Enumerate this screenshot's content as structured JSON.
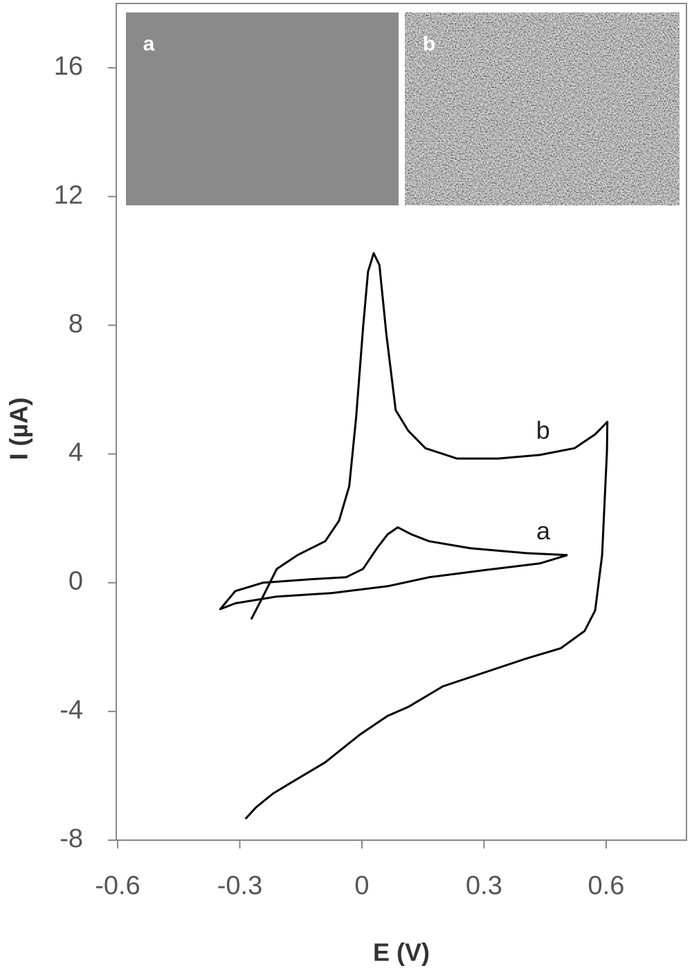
{
  "chart_data": {
    "type": "line",
    "xlabel": "E (V)",
    "ylabel": "I (µA)",
    "xlim": [
      -0.6,
      0.8
    ],
    "xticks": [
      -0.6,
      -0.3,
      0,
      0.3,
      0.6
    ],
    "ylim": [
      -8,
      18
    ],
    "yticks": [
      -8,
      -4,
      0,
      4,
      8,
      12,
      16
    ],
    "insets": [
      {
        "label": "a"
      },
      {
        "label": "b"
      }
    ],
    "series": [
      {
        "name": "a",
        "color": "#000000",
        "x": [
          0.505,
          0.403,
          0.267,
          0.165,
          0.122,
          0.088,
          0.063,
          0.037,
          0.003,
          -0.039,
          -0.124,
          -0.243,
          -0.311,
          -0.348,
          -0.311,
          -0.209,
          -0.073,
          0.063,
          0.165,
          0.301,
          0.437,
          0.505
        ],
        "values": [
          0.86,
          0.92,
          1.07,
          1.29,
          1.5,
          1.72,
          1.5,
          1.07,
          0.43,
          0.17,
          0.11,
          0,
          -0.26,
          -0.82,
          -0.64,
          -0.43,
          -0.32,
          -0.11,
          0.17,
          0.39,
          0.6,
          0.86
        ]
      },
      {
        "name": "b",
        "color": "#000000",
        "x": [
          -0.272,
          -0.243,
          -0.209,
          -0.158,
          -0.09,
          -0.056,
          -0.031,
          -0.014,
          0.003,
          0.015,
          0.029,
          0.043,
          0.06,
          0.083,
          0.114,
          0.156,
          0.233,
          0.335,
          0.437,
          0.522,
          0.573,
          0.603,
          0.602,
          0.59,
          0.573,
          0.547,
          0.488,
          0.403,
          0.301,
          0.199,
          0.114,
          0.063,
          -0.005,
          -0.09,
          -0.175,
          -0.218,
          -0.26,
          -0.286
        ],
        "values": [
          -1.14,
          -0.43,
          0.43,
          0.86,
          1.29,
          1.93,
          3.0,
          5.15,
          7.94,
          9.66,
          10.24,
          9.87,
          7.73,
          5.36,
          4.72,
          4.18,
          3.86,
          3.86,
          3.97,
          4.18,
          4.61,
          5.0,
          4.08,
          0.86,
          -0.86,
          -1.5,
          -2.04,
          -2.36,
          -2.79,
          -3.22,
          -3.86,
          -4.14,
          -4.72,
          -5.58,
          -6.22,
          -6.55,
          -6.98,
          -7.34
        ]
      }
    ]
  }
}
